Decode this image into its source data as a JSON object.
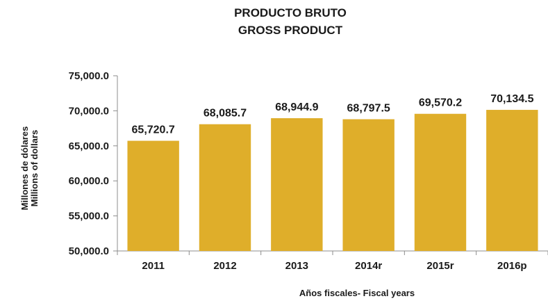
{
  "chart_data": {
    "type": "bar",
    "title": [
      "PRODUCTO BRUTO",
      "GROSS PRODUCT"
    ],
    "ylabel": [
      "Millones de dólares",
      "Millions of dollars"
    ],
    "xlabel": "Años fiscales- Fiscal years",
    "categories": [
      "2011",
      "2012",
      "2013",
      "2014r",
      "2015r",
      "2016p"
    ],
    "values": [
      65720.7,
      68085.7,
      68944.9,
      68797.5,
      69570.2,
      70134.5
    ],
    "data_labels": [
      "65,720.7",
      "68,085.7",
      "68,944.9",
      "68,797.5",
      "69,570.2",
      "70,134.5"
    ],
    "yticks": [
      50000,
      55000,
      60000,
      65000,
      70000,
      75000
    ],
    "ytick_labels": [
      "50,000.0",
      "55,000.0",
      "60,000.0",
      "65,000.0",
      "70,000.0",
      "75,000.0"
    ],
    "ylim": [
      50000,
      75000
    ],
    "grid": false,
    "legend": "none",
    "colors": {
      "bar": "#dfae2a",
      "axis": "#8c8c8c"
    }
  }
}
